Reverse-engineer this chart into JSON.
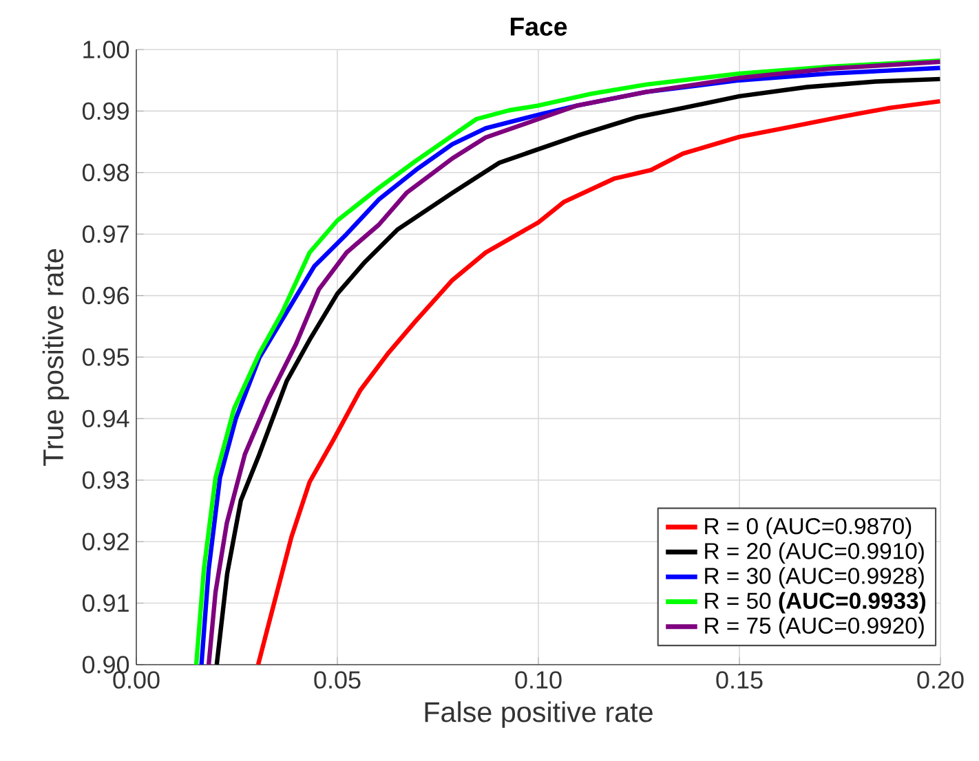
{
  "chart_data": {
    "type": "line",
    "title": "Face",
    "xlabel": "False positive rate",
    "ylabel": "True positive rate",
    "xlim": [
      0,
      0.2
    ],
    "ylim": [
      0.9,
      1.0
    ],
    "xticks": [
      {
        "value": 0,
        "label": "0.00"
      },
      0.05,
      {
        "value": 0.1,
        "label": "0.10"
      },
      0.15,
      {
        "value": 0.2,
        "label": "0.20"
      }
    ],
    "yticks": [
      {
        "value": 0.9,
        "label": "0.90"
      },
      0.91,
      0.92,
      0.93,
      0.94,
      0.95,
      0.96,
      0.97,
      0.98,
      0.99,
      {
        "value": 1.0,
        "label": "1.00"
      }
    ],
    "grid": true,
    "legend": "bottom right",
    "line_style": "solid",
    "marker": "none",
    "series": [
      {
        "name": "R = 0   (AUC=0.9870)",
        "color": "#ff0000",
        "x": [
          0.0303,
          0.0326,
          0.0386,
          0.0431,
          0.0489,
          0.0557,
          0.0626,
          0.0694,
          0.0786,
          0.0869,
          0.1,
          0.1063,
          0.1188,
          0.128,
          0.136,
          0.15,
          0.161,
          0.1748,
          0.1873,
          0.1999
        ],
        "values": [
          0.9,
          0.9058,
          0.9208,
          0.9297,
          0.9364,
          0.9446,
          0.9506,
          0.9558,
          0.9625,
          0.967,
          0.9719,
          0.9752,
          0.979,
          0.9804,
          0.9831,
          0.9858,
          0.9872,
          0.989,
          0.9905,
          0.9916
        ]
      },
      {
        "name": "R = 20 (AUC=0.9910)",
        "color": "#000000",
        "x": [
          0.02,
          0.0226,
          0.026,
          0.0306,
          0.0374,
          0.0431,
          0.05,
          0.0569,
          0.0649,
          0.0786,
          0.0903,
          0.1,
          0.1097,
          0.1245,
          0.136,
          0.15,
          0.1668,
          0.1839,
          0.1999
        ],
        "values": [
          0.9,
          0.9148,
          0.9267,
          0.9342,
          0.9461,
          0.9528,
          0.9603,
          0.9655,
          0.9707,
          0.9767,
          0.9816,
          0.9838,
          0.986,
          0.989,
          0.9905,
          0.9924,
          0.9939,
          0.9948,
          0.9952
        ]
      },
      {
        "name": "R = 30 (AUC=0.9928)",
        "color": "#0000ff",
        "x": [
          0.0162,
          0.018,
          0.0208,
          0.0248,
          0.0306,
          0.0374,
          0.0443,
          0.0523,
          0.0603,
          0.0695,
          0.0786,
          0.0869,
          0.1,
          0.1097,
          0.1268,
          0.15,
          0.1725,
          0.1999
        ],
        "values": [
          0.9,
          0.9155,
          0.9304,
          0.9401,
          0.9499,
          0.9573,
          0.9648,
          0.97,
          0.9756,
          0.9804,
          0.9846,
          0.9872,
          0.9894,
          0.9909,
          0.9931,
          0.995,
          0.9961,
          0.997
        ]
      },
      {
        "name": "R = 50   **(AUC=0.9933)**",
        "color": "#00ff00",
        "x": [
          0.0149,
          0.0168,
          0.0197,
          0.0243,
          0.0306,
          0.0363,
          0.0431,
          0.05,
          0.0603,
          0.0695,
          0.0786,
          0.0846,
          0.0926,
          0.1,
          0.1131,
          0.1268,
          0.15,
          0.1725,
          0.1999
        ],
        "values": [
          0.9,
          0.9155,
          0.9304,
          0.9416,
          0.9506,
          0.9573,
          0.967,
          0.9722,
          0.9775,
          0.9819,
          0.986,
          0.9887,
          0.9901,
          0.9909,
          0.9928,
          0.9943,
          0.9961,
          0.9972,
          0.9982
        ]
      },
      {
        "name": "R = 75 (AUC=0.9920)",
        "color": "#7f007f",
        "x": [
          0.018,
          0.0197,
          0.0225,
          0.027,
          0.0328,
          0.0397,
          0.0454,
          0.0523,
          0.0603,
          0.0672,
          0.0786,
          0.0869,
          0.1,
          0.1097,
          0.1268,
          0.15,
          0.1725,
          0.1999
        ],
        "values": [
          0.9,
          0.9118,
          0.923,
          0.9342,
          0.9431,
          0.9521,
          0.961,
          0.967,
          0.9715,
          0.9767,
          0.9823,
          0.9857,
          0.9887,
          0.9909,
          0.9931,
          0.9954,
          0.9969,
          0.998
        ]
      }
    ]
  }
}
